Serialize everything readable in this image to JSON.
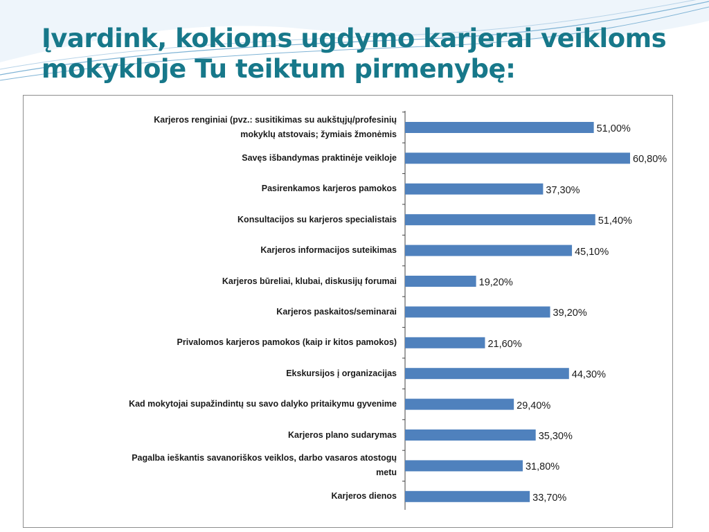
{
  "slide": {
    "title": "Įvardink, kokioms ugdymo karjerai veikloms mokykloje Tu teiktum pirmenybę:"
  },
  "colors": {
    "title": "#17788a",
    "bar": "#4f81bd",
    "accent_lines": "#7fb3d5"
  },
  "chart_data": {
    "type": "bar",
    "orientation": "horizontal",
    "categories": [
      "Karjeros renginiai (pvz.: susitikimas su aukštųjų/profesinių mokyklų atstovais; žymiais žmonėmis",
      "Savęs išbandymas praktinėje veikloje",
      "Pasirenkamos karjeros pamokos",
      "Konsultacijos su karjeros specialistais",
      "Karjeros informacijos suteikimas",
      "Karjeros būreliai, klubai, diskusijų forumai",
      "Karjeros paskaitos/seminarai",
      "Privalomos karjeros pamokos (kaip ir kitos pamokos)",
      "Ekskursijos į organizacijas",
      "Kad mokytojai supažindintų su savo dalyko pritaikymu gyvenime",
      "Karjeros plano sudarymas",
      "Pagalba ieškantis savanoriškos veiklos, darbo vasaros atostogų metu",
      "Karjeros dienos"
    ],
    "values": [
      51.0,
      60.8,
      37.3,
      51.4,
      45.1,
      19.2,
      39.2,
      21.6,
      44.3,
      29.4,
      35.3,
      31.8,
      33.7
    ],
    "data_labels": [
      "51,00%",
      "60,80%",
      "37,30%",
      "51,40%",
      "45,10%",
      "19,20%",
      "39,20%",
      "21,60%",
      "44,30%",
      "29,40%",
      "35,30%",
      "31,80%",
      "33,70%"
    ],
    "xlim": [
      0,
      60.8
    ],
    "grid": false,
    "legend": "none"
  }
}
